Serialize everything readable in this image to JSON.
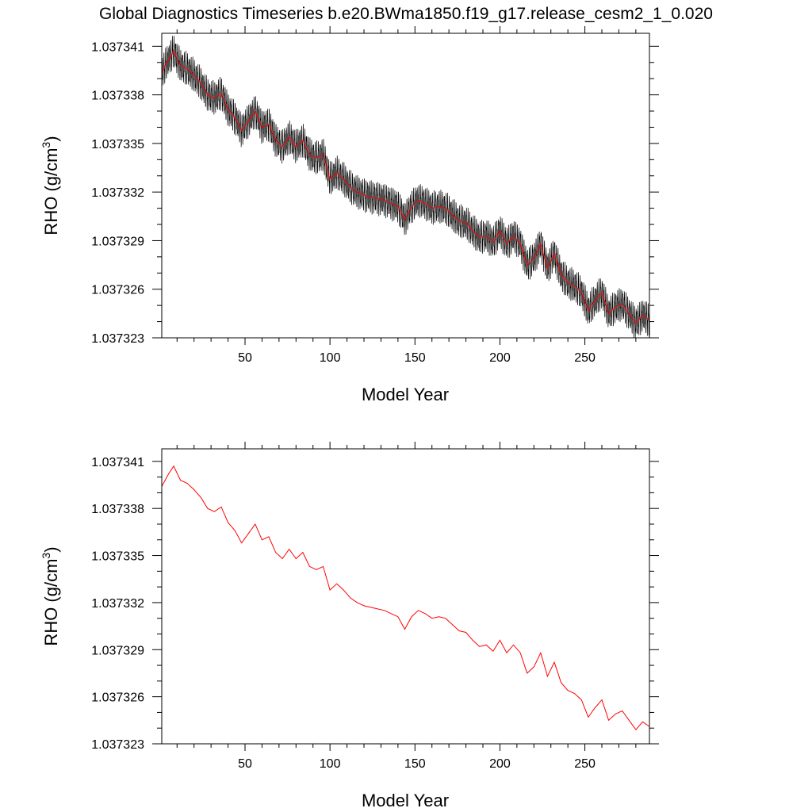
{
  "figure_title": "Global Diagnostics Timeseries b.e20.BWma1850.f19_g17.release_cesm2_1_0.020",
  "colors": {
    "raw_series": "#000000",
    "smoothed_series": "#ff0000",
    "background": "#ffffff"
  },
  "chart_data": [
    {
      "type": "line",
      "title": "",
      "xlabel": "Model Year",
      "ylabel": "RHO (g/cm",
      "ylabel_superscript": "3",
      "ylabel_suffix": ")",
      "xlim": [
        1,
        288
      ],
      "ylim": [
        1.037323,
        1.0373418
      ],
      "xticks": [
        50,
        100,
        150,
        200,
        250
      ],
      "xtick_labels": [
        "50",
        "100",
        "150",
        "200",
        "250"
      ],
      "yticks": [
        1.037323,
        1.037326,
        1.037329,
        1.037332,
        1.037335,
        1.037338,
        1.037341
      ],
      "ytick_labels": [
        "1.037323",
        "1.037326",
        "1.037329",
        "1.037332",
        "1.037335",
        "1.037338",
        "1.037341"
      ],
      "grid": false,
      "legend": "none",
      "series": [
        {
          "kind": "monthly-oscillating",
          "color": "#000000",
          "amplitude": 9e-07,
          "x": [
            1,
            5,
            8,
            12,
            16,
            20,
            24,
            28,
            32,
            36,
            40,
            44,
            48,
            52,
            56,
            60,
            64,
            68,
            72,
            76,
            80,
            84,
            88,
            92,
            96,
            100,
            104,
            108,
            112,
            116,
            120,
            124,
            128,
            132,
            136,
            140,
            144,
            148,
            152,
            156,
            160,
            164,
            168,
            172,
            176,
            180,
            184,
            188,
            192,
            196,
            200,
            204,
            208,
            212,
            216,
            220,
            224,
            228,
            232,
            236,
            240,
            244,
            248,
            252,
            256,
            260,
            264,
            268,
            272,
            276,
            280,
            284,
            288
          ],
          "y": [
            1.0373394,
            1.0373402,
            1.0373407,
            1.0373398,
            1.0373396,
            1.0373392,
            1.0373387,
            1.037338,
            1.0373378,
            1.0373381,
            1.0373371,
            1.0373366,
            1.0373358,
            1.0373364,
            1.037337,
            1.037336,
            1.0373362,
            1.0373352,
            1.0373348,
            1.0373354,
            1.0373348,
            1.0373352,
            1.0373343,
            1.0373341,
            1.0373343,
            1.0373328,
            1.0373332,
            1.0373328,
            1.0373323,
            1.037332,
            1.0373318,
            1.0373317,
            1.0373316,
            1.0373315,
            1.0373313,
            1.0373311,
            1.0373303,
            1.0373311,
            1.0373315,
            1.0373313,
            1.037331,
            1.0373311,
            1.037331,
            1.0373306,
            1.0373302,
            1.0373301,
            1.0373296,
            1.0373292,
            1.0373293,
            1.0373289,
            1.0373296,
            1.0373288,
            1.0373293,
            1.0373288,
            1.0373275,
            1.0373279,
            1.0373288,
            1.0373273,
            1.0373282,
            1.0373269,
            1.0373264,
            1.0373262,
            1.0373258,
            1.0373247,
            1.0373253,
            1.0373258,
            1.0373245,
            1.0373249,
            1.0373251,
            1.0373245,
            1.0373239,
            1.0373244,
            1.0373241
          ]
        },
        {
          "kind": "smoothed",
          "color": "#ff0000",
          "x": [
            1,
            5,
            8,
            12,
            16,
            20,
            24,
            28,
            32,
            36,
            40,
            44,
            48,
            52,
            56,
            60,
            64,
            68,
            72,
            76,
            80,
            84,
            88,
            92,
            96,
            100,
            104,
            108,
            112,
            116,
            120,
            124,
            128,
            132,
            136,
            140,
            144,
            148,
            152,
            156,
            160,
            164,
            168,
            172,
            176,
            180,
            184,
            188,
            192,
            196,
            200,
            204,
            208,
            212,
            216,
            220,
            224,
            228,
            232,
            236,
            240,
            244,
            248,
            252,
            256,
            260,
            264,
            268,
            272,
            276,
            280,
            284,
            288
          ],
          "y": [
            1.0373394,
            1.0373402,
            1.0373407,
            1.0373398,
            1.0373396,
            1.0373392,
            1.0373387,
            1.037338,
            1.0373378,
            1.0373381,
            1.0373371,
            1.0373366,
            1.0373358,
            1.0373364,
            1.037337,
            1.037336,
            1.0373362,
            1.0373352,
            1.0373348,
            1.0373354,
            1.0373348,
            1.0373352,
            1.0373343,
            1.0373341,
            1.0373343,
            1.0373328,
            1.0373332,
            1.0373328,
            1.0373323,
            1.037332,
            1.0373318,
            1.0373317,
            1.0373316,
            1.0373315,
            1.0373313,
            1.0373311,
            1.0373303,
            1.0373311,
            1.0373315,
            1.0373313,
            1.037331,
            1.0373311,
            1.037331,
            1.0373306,
            1.0373302,
            1.0373301,
            1.0373296,
            1.0373292,
            1.0373293,
            1.0373289,
            1.0373296,
            1.0373288,
            1.0373293,
            1.0373288,
            1.0373275,
            1.0373279,
            1.0373288,
            1.0373273,
            1.0373282,
            1.0373269,
            1.0373264,
            1.0373262,
            1.0373258,
            1.0373247,
            1.0373253,
            1.0373258,
            1.0373245,
            1.0373249,
            1.0373251,
            1.0373245,
            1.0373239,
            1.0373244,
            1.0373241
          ]
        }
      ]
    },
    {
      "type": "line",
      "title": "",
      "xlabel": "Model Year",
      "ylabel": "RHO (g/cm",
      "ylabel_superscript": "3",
      "ylabel_suffix": ")",
      "xlim": [
        1,
        288
      ],
      "ylim": [
        1.037323,
        1.0373418
      ],
      "xticks": [
        50,
        100,
        150,
        200,
        250
      ],
      "xtick_labels": [
        "50",
        "100",
        "150",
        "200",
        "250"
      ],
      "yticks": [
        1.037323,
        1.037326,
        1.037329,
        1.037332,
        1.037335,
        1.037338,
        1.037341
      ],
      "ytick_labels": [
        "1.037323",
        "1.037326",
        "1.037329",
        "1.037332",
        "1.037335",
        "1.037338",
        "1.037341"
      ],
      "grid": false,
      "legend": "none",
      "series": [
        {
          "kind": "smoothed",
          "color": "#ff0000",
          "x": [
            1,
            5,
            8,
            12,
            16,
            20,
            24,
            28,
            32,
            36,
            40,
            44,
            48,
            52,
            56,
            60,
            64,
            68,
            72,
            76,
            80,
            84,
            88,
            92,
            96,
            100,
            104,
            108,
            112,
            116,
            120,
            124,
            128,
            132,
            136,
            140,
            144,
            148,
            152,
            156,
            160,
            164,
            168,
            172,
            176,
            180,
            184,
            188,
            192,
            196,
            200,
            204,
            208,
            212,
            216,
            220,
            224,
            228,
            232,
            236,
            240,
            244,
            248,
            252,
            256,
            260,
            264,
            268,
            272,
            276,
            280,
            284,
            288
          ],
          "y": [
            1.0373394,
            1.0373402,
            1.0373407,
            1.0373398,
            1.0373396,
            1.0373392,
            1.0373387,
            1.037338,
            1.0373378,
            1.0373381,
            1.0373371,
            1.0373366,
            1.0373358,
            1.0373364,
            1.037337,
            1.037336,
            1.0373362,
            1.0373352,
            1.0373348,
            1.0373354,
            1.0373348,
            1.0373352,
            1.0373343,
            1.0373341,
            1.0373343,
            1.0373328,
            1.0373332,
            1.0373328,
            1.0373323,
            1.037332,
            1.0373318,
            1.0373317,
            1.0373316,
            1.0373315,
            1.0373313,
            1.0373311,
            1.0373303,
            1.0373311,
            1.0373315,
            1.0373313,
            1.037331,
            1.0373311,
            1.037331,
            1.0373306,
            1.0373302,
            1.0373301,
            1.0373296,
            1.0373292,
            1.0373293,
            1.0373289,
            1.0373296,
            1.0373288,
            1.0373293,
            1.0373288,
            1.0373275,
            1.0373279,
            1.0373288,
            1.0373273,
            1.0373282,
            1.0373269,
            1.0373264,
            1.0373262,
            1.0373258,
            1.0373247,
            1.0373253,
            1.0373258,
            1.0373245,
            1.0373249,
            1.0373251,
            1.0373245,
            1.0373239,
            1.0373244,
            1.0373241
          ]
        }
      ]
    }
  ]
}
